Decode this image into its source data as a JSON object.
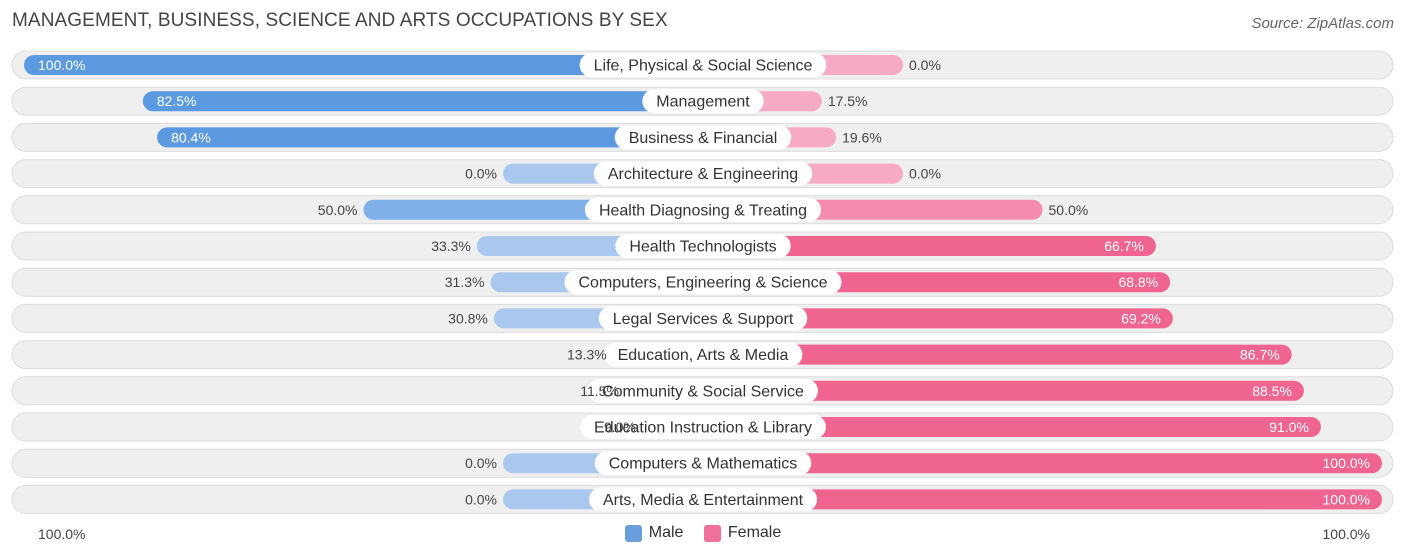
{
  "title": "MANAGEMENT, BUSINESS, SCIENCE AND ARTS OCCUPATIONS BY SEX",
  "source": "Source: ZipAtlas.com",
  "axis": {
    "left_label": "100.0%",
    "right_label": "100.0%"
  },
  "colors": {
    "male": "#5b9ae0",
    "male_light": "#aac8ee",
    "female": "#f06590",
    "female_light": "#f7aac3"
  },
  "legend": [
    {
      "name": "Male",
      "color": "#6a9fde"
    },
    {
      "name": "Female",
      "color": "#f0709a"
    }
  ],
  "chart_data": {
    "type": "bar",
    "orientation": "horizontal-diverging",
    "categories": [
      "Life, Physical & Social Science",
      "Management",
      "Business & Financial",
      "Architecture & Engineering",
      "Health Diagnosing & Treating",
      "Health Technologists",
      "Computers, Engineering & Science",
      "Legal Services & Support",
      "Education, Arts & Media",
      "Community & Social Service",
      "Education Instruction & Library",
      "Computers & Mathematics",
      "Arts, Media & Entertainment"
    ],
    "series": [
      {
        "name": "Male",
        "values": [
          100.0,
          82.5,
          80.4,
          0.0,
          50.0,
          33.3,
          31.3,
          30.8,
          13.3,
          11.5,
          9.0,
          0.0,
          0.0
        ],
        "labels": [
          "100.0%",
          "82.5%",
          "80.4%",
          "0.0%",
          "50.0%",
          "33.3%",
          "31.3%",
          "30.8%",
          "13.3%",
          "11.5%",
          "9.0%",
          "0.0%",
          "0.0%"
        ]
      },
      {
        "name": "Female",
        "values": [
          0.0,
          17.5,
          19.6,
          0.0,
          50.0,
          66.7,
          68.8,
          69.2,
          86.7,
          88.5,
          91.0,
          100.0,
          100.0
        ],
        "labels": [
          "0.0%",
          "17.5%",
          "19.6%",
          "0.0%",
          "50.0%",
          "66.7%",
          "68.8%",
          "69.2%",
          "86.7%",
          "88.5%",
          "91.0%",
          "100.0%",
          "100.0%"
        ]
      }
    ],
    "xlim": [
      -100,
      100
    ],
    "legend_position": "bottom-center"
  }
}
